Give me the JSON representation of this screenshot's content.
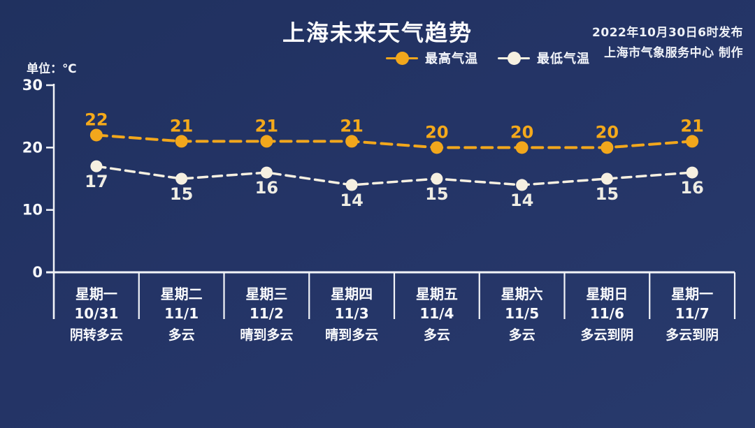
{
  "header": {
    "title": "上海未来天气趋势",
    "publish_date": "2022年10月30日6时发布",
    "publisher": "上海市气象服务中心 制作"
  },
  "chart_data": {
    "type": "line",
    "title": "上海未来天气趋势",
    "unit_label": "单位：℃",
    "legend_position": "top",
    "grid": false,
    "y_axis": {
      "min": 0,
      "max": 30,
      "ticks": [
        30,
        20,
        10,
        0
      ]
    },
    "x_axis": {
      "days": [
        {
          "weekday": "星期一",
          "date": "10/31",
          "weather": "阴转多云"
        },
        {
          "weekday": "星期二",
          "date": "11/1",
          "weather": "多云"
        },
        {
          "weekday": "星期三",
          "date": "11/2",
          "weather": "晴到多云"
        },
        {
          "weekday": "星期四",
          "date": "11/3",
          "weather": "晴到多云"
        },
        {
          "weekday": "星期五",
          "date": "11/4",
          "weather": "多云"
        },
        {
          "weekday": "星期六",
          "date": "11/5",
          "weather": "多云"
        },
        {
          "weekday": "星期日",
          "date": "11/6",
          "weather": "多云到阴"
        },
        {
          "weekday": "星期一",
          "date": "11/7",
          "weather": "多云到阴"
        }
      ]
    },
    "series": [
      {
        "name": "最高气温",
        "color": "#F2A71C",
        "label_color": "#F4A91B",
        "values": [
          22,
          21,
          21,
          21,
          20,
          20,
          20,
          21
        ],
        "label_position": "above"
      },
      {
        "name": "最低气温",
        "color": "#F6F0E1",
        "label_color": "#EFEDE4",
        "values": [
          17,
          15,
          16,
          14,
          15,
          14,
          15,
          16
        ],
        "label_position": "below"
      }
    ]
  }
}
